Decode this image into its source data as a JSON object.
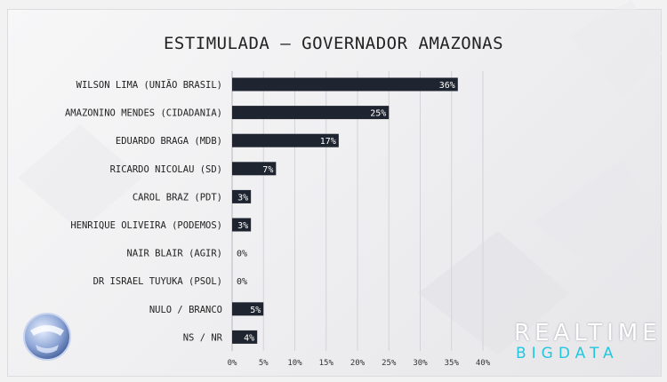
{
  "chart_data": {
    "type": "bar",
    "orientation": "horizontal",
    "title": "ESTIMULADA – GOVERNADOR AMAZONAS",
    "categories": [
      "WILSON LIMA (UNIÃO BRASIL)",
      "AMAZONINO MENDES (CIDADANIA)",
      "EDUARDO BRAGA (MDB)",
      "RICARDO NICOLAU (SD)",
      "CAROL BRAZ (PDT)",
      "HENRIQUE OLIVEIRA (PODEMOS)",
      "NAIR BLAIR (AGIR)",
      "DR ISRAEL TUYUKA (PSOL)",
      "NULO / BRANCO",
      "NS / NR"
    ],
    "values": [
      36,
      25,
      17,
      7,
      3,
      3,
      0,
      0,
      5,
      4
    ],
    "data_labels": [
      "36%",
      "25%",
      "17%",
      "7%",
      "3%",
      "3%",
      "0%",
      "0%",
      "5%",
      "4%"
    ],
    "x_ticks": [
      "0%",
      "5%",
      "10%",
      "15%",
      "20%",
      "25%",
      "30%",
      "35%",
      "40%"
    ],
    "xlim": [
      0,
      40
    ],
    "grid": true,
    "bar_color": "#1f2530",
    "label_color": "#ffffff"
  },
  "branding": {
    "line1": "REALTIME",
    "line2": "BIGDATA"
  }
}
